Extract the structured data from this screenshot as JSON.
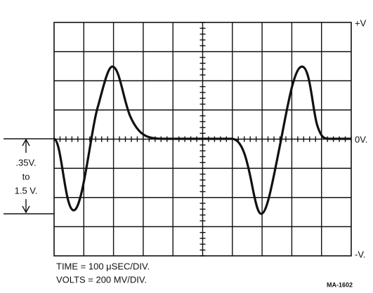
{
  "labels": {
    "plus_v": "+V",
    "zero_v": "0V.",
    "minus_v": "-V."
  },
  "amplitude": {
    "line1": ".35V.",
    "line2": "to",
    "line3": "1.5 V."
  },
  "notes": [
    "TIME = 100 μSEC/DIV.",
    "VOLTS = 200 MV/DIV."
  ],
  "figure_id": "MA-1602"
}
